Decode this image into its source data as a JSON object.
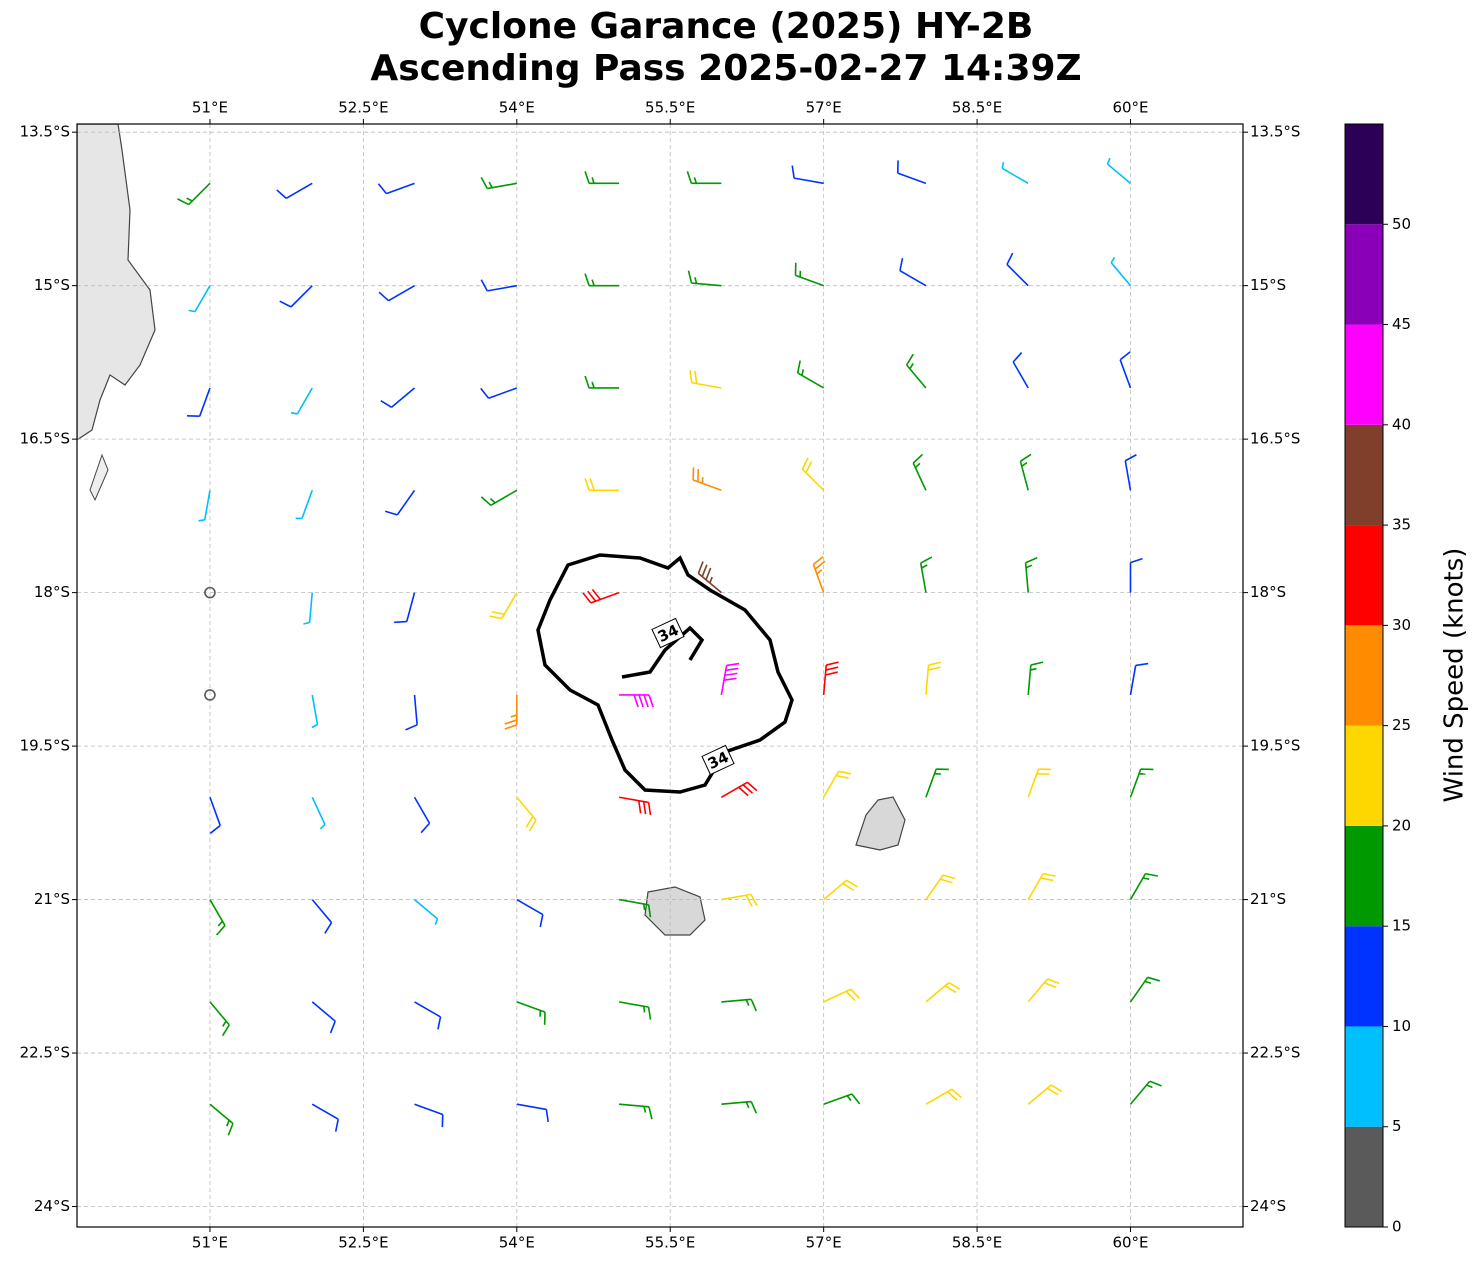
{
  "chart_data": {
    "type": "wind-barb-map",
    "title": "Cyclone Garance (2025) HY-2B",
    "subtitle": "Ascending Pass 2025-02-27 14:39Z",
    "xlim": [
      49.7,
      61.1
    ],
    "ylim": [
      -24.2,
      -13.42
    ],
    "xticks": [
      {
        "value": 51,
        "label": "51°E"
      },
      {
        "value": 52.5,
        "label": "52.5°E"
      },
      {
        "value": 54,
        "label": "54°E"
      },
      {
        "value": 55.5,
        "label": "55.5°E"
      },
      {
        "value": 57,
        "label": "57°E"
      },
      {
        "value": 58.5,
        "label": "58.5°E"
      },
      {
        "value": 60,
        "label": "60°E"
      }
    ],
    "yticks": [
      {
        "value": -13.5,
        "label": "13.5°S"
      },
      {
        "value": -15,
        "label": "15°S"
      },
      {
        "value": -16.5,
        "label": "16.5°S"
      },
      {
        "value": -18,
        "label": "18°S"
      },
      {
        "value": -19.5,
        "label": "19.5°S"
      },
      {
        "value": -21,
        "label": "21°S"
      },
      {
        "value": -22.5,
        "label": "22.5°S"
      },
      {
        "value": -24,
        "label": "24°S"
      }
    ],
    "grid": true,
    "barbs": {
      "lon": [
        51,
        52,
        53,
        54,
        55,
        56,
        57,
        58,
        59,
        60
      ],
      "lat": [
        -14,
        -15,
        -16,
        -17,
        -18,
        -19,
        -20,
        -21,
        -22,
        -23
      ],
      "speed": [
        [
          15,
          10,
          10,
          15,
          15,
          15,
          10,
          10,
          5,
          5
        ],
        [
          5,
          10,
          10,
          10,
          15,
          15,
          15,
          10,
          10,
          5
        ],
        [
          10,
          5,
          10,
          10,
          15,
          20,
          15,
          15,
          10,
          10
        ],
        [
          5,
          5,
          10,
          15,
          20,
          25,
          20,
          15,
          15,
          10
        ],
        [
          2,
          5,
          10,
          20,
          30,
          35,
          25,
          15,
          15,
          10
        ],
        [
          2,
          5,
          10,
          25,
          40,
          40,
          30,
          20,
          15,
          10
        ],
        [
          10,
          5,
          10,
          20,
          30,
          30,
          20,
          15,
          20,
          15
        ],
        [
          15,
          10,
          5,
          10,
          15,
          20,
          20,
          20,
          20,
          15
        ],
        [
          15,
          10,
          10,
          15,
          15,
          15,
          20,
          20,
          20,
          15
        ],
        [
          15,
          10,
          10,
          10,
          15,
          15,
          15,
          20,
          20,
          15
        ]
      ],
      "direction": [
        [
          45,
          60,
          70,
          80,
          90,
          90,
          100,
          110,
          120,
          130
        ],
        [
          30,
          45,
          60,
          80,
          90,
          95,
          110,
          120,
          135,
          140
        ],
        [
          20,
          30,
          50,
          70,
          90,
          100,
          120,
          140,
          150,
          160
        ],
        [
          10,
          20,
          35,
          60,
          90,
          110,
          135,
          155,
          165,
          170
        ],
        [
          0,
          5,
          15,
          30,
          70,
          130,
          160,
          170,
          175,
          180
        ],
        [
          350,
          350,
          355,
          0,
          270,
          190,
          185,
          185,
          185,
          190
        ],
        [
          340,
          335,
          330,
          320,
          280,
          240,
          210,
          200,
          200,
          200
        ],
        [
          330,
          320,
          310,
          300,
          280,
          260,
          230,
          215,
          210,
          210
        ],
        [
          320,
          310,
          300,
          290,
          280,
          265,
          245,
          230,
          220,
          215
        ],
        [
          310,
          300,
          290,
          280,
          275,
          265,
          250,
          240,
          230,
          220
        ]
      ]
    },
    "contour_level": 34,
    "colorbar": {
      "label": "Wind Speed (knots)",
      "bounds": [
        0,
        5,
        10,
        15,
        20,
        25,
        30,
        35,
        40,
        45,
        50,
        55
      ],
      "colors": [
        "#5a5a5a",
        "#00bfff",
        "#0033ff",
        "#009900",
        "#ffd700",
        "#ff8c00",
        "#ff0000",
        "#7f3f2a",
        "#ff00ff",
        "#8a00b8",
        "#2d0058"
      ],
      "ticks": [
        0,
        5,
        10,
        15,
        20,
        25,
        30,
        35,
        40,
        45,
        50
      ]
    }
  }
}
